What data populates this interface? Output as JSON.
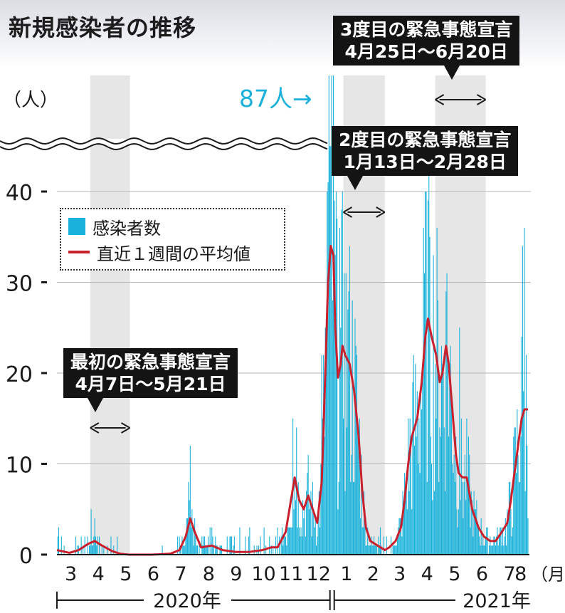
{
  "title": "新規感染者の推移",
  "annotations": {
    "first_state": {
      "line1": "最初の緊急事態宣言",
      "line2": "4月7日〜5月21日"
    },
    "second_state": {
      "line1": "2度目の緊急事態宣言",
      "line2": "1月13日〜2月28日"
    },
    "third_state": {
      "line1": "3度目の緊急事態宣言",
      "line2": "4月25日〜6月20日"
    },
    "peak_label": "87人→"
  },
  "legend": {
    "bar": "感染者数",
    "line": "直近１週間の平均値"
  },
  "colors": {
    "bar": "#1ab2db",
    "line": "#c8202c",
    "shade": "#e6e6e6",
    "peak_text": "#1ab2db"
  },
  "chart_data": {
    "type": "bar",
    "ylabel": "（人）",
    "y_ticks": [
      "0",
      "10",
      "20",
      "30",
      "40"
    ],
    "ylim": [
      0,
      45
    ],
    "axis_break": true,
    "x_tick_labels": [
      "3",
      "4",
      "5",
      "6",
      "7",
      "8",
      "9",
      "10",
      "11",
      "12",
      "1",
      "2",
      "3",
      "4",
      "5",
      "6",
      "7",
      "8"
    ],
    "x_unit": "（月）",
    "years": [
      "2020年",
      "2021年"
    ],
    "peak_value": 87,
    "emergency_periods": [
      {
        "start": "2020-04-07",
        "end": "2020-05-21"
      },
      {
        "start": "2021-01-13",
        "end": "2021-02-28"
      },
      {
        "start": "2021-04-25",
        "end": "2021-06-20"
      }
    ],
    "series": [
      {
        "name": "直近１週間の平均値",
        "type": "line",
        "points": [
          [
            "2020-03-01",
            0.5
          ],
          [
            "2020-03-15",
            0.2
          ],
          [
            "2020-03-25",
            0.5
          ],
          [
            "2020-04-05",
            1.2
          ],
          [
            "2020-04-12",
            1.5
          ],
          [
            "2020-04-20",
            1.0
          ],
          [
            "2020-05-01",
            0.4
          ],
          [
            "2020-05-10",
            0.1
          ],
          [
            "2020-05-20",
            0.0
          ],
          [
            "2020-06-15",
            0.0
          ],
          [
            "2020-07-05",
            0.1
          ],
          [
            "2020-07-15",
            0.5
          ],
          [
            "2020-07-22",
            2.0
          ],
          [
            "2020-07-27",
            4.0
          ],
          [
            "2020-08-01",
            2.5
          ],
          [
            "2020-08-08",
            0.8
          ],
          [
            "2020-08-20",
            1.0
          ],
          [
            "2020-09-01",
            0.5
          ],
          [
            "2020-09-15",
            0.3
          ],
          [
            "2020-10-01",
            0.3
          ],
          [
            "2020-10-15",
            0.5
          ],
          [
            "2020-10-25",
            0.8
          ],
          [
            "2020-11-01",
            0.8
          ],
          [
            "2020-11-10",
            2.5
          ],
          [
            "2020-11-15",
            5.5
          ],
          [
            "2020-11-20",
            8.5
          ],
          [
            "2020-11-25",
            6.0
          ],
          [
            "2020-11-30",
            5.0
          ],
          [
            "2020-12-05",
            6.5
          ],
          [
            "2020-12-10",
            5.0
          ],
          [
            "2020-12-15",
            3.5
          ],
          [
            "2020-12-20",
            8.0
          ],
          [
            "2020-12-24",
            20.0
          ],
          [
            "2020-12-27",
            30.0
          ],
          [
            "2020-12-30",
            34.0
          ],
          [
            "2021-01-02",
            33.0
          ],
          [
            "2021-01-04",
            25.0
          ],
          [
            "2021-01-07",
            19.5
          ],
          [
            "2021-01-10",
            21.0
          ],
          [
            "2021-01-12",
            23.0
          ],
          [
            "2021-01-15",
            22.0
          ],
          [
            "2021-01-20",
            21.0
          ],
          [
            "2021-01-25",
            18.0
          ],
          [
            "2021-01-30",
            13.0
          ],
          [
            "2021-02-03",
            7.0
          ],
          [
            "2021-02-07",
            3.0
          ],
          [
            "2021-02-12",
            1.5
          ],
          [
            "2021-02-20",
            1.0
          ],
          [
            "2021-02-28",
            0.5
          ],
          [
            "2021-03-05",
            0.8
          ],
          [
            "2021-03-12",
            1.5
          ],
          [
            "2021-03-18",
            3.0
          ],
          [
            "2021-03-22",
            6.0
          ],
          [
            "2021-03-26",
            10.0
          ],
          [
            "2021-03-30",
            13.0
          ],
          [
            "2021-04-05",
            15.0
          ],
          [
            "2021-04-10",
            19.0
          ],
          [
            "2021-04-14",
            24.0
          ],
          [
            "2021-04-17",
            26.0
          ],
          [
            "2021-04-21",
            24.0
          ],
          [
            "2021-04-26",
            22.0
          ],
          [
            "2021-04-30",
            19.0
          ],
          [
            "2021-05-03",
            20.0
          ],
          [
            "2021-05-07",
            23.0
          ],
          [
            "2021-05-10",
            21.0
          ],
          [
            "2021-05-14",
            16.0
          ],
          [
            "2021-05-18",
            11.0
          ],
          [
            "2021-05-21",
            9.0
          ],
          [
            "2021-05-25",
            8.5
          ],
          [
            "2021-05-30",
            8.5
          ],
          [
            "2021-06-05",
            5.0
          ],
          [
            "2021-06-12",
            3.0
          ],
          [
            "2021-06-18",
            2.0
          ],
          [
            "2021-06-25",
            1.5
          ],
          [
            "2021-07-01",
            1.5
          ],
          [
            "2021-07-08",
            2.5
          ],
          [
            "2021-07-14",
            3.5
          ],
          [
            "2021-07-18",
            6.0
          ],
          [
            "2021-07-22",
            9.0
          ],
          [
            "2021-07-26",
            12.0
          ],
          [
            "2021-07-30",
            15.0
          ],
          [
            "2021-08-02",
            16.0
          ]
        ]
      },
      {
        "name": "感染者数",
        "type": "bar",
        "highlights": [
          [
            "2020-04-08",
            5
          ],
          [
            "2020-04-12",
            4
          ],
          [
            "2020-07-27",
            12
          ],
          [
            "2020-07-25",
            8
          ],
          [
            "2020-11-18",
            15
          ],
          [
            "2020-11-22",
            14
          ],
          [
            "2020-12-20",
            22
          ],
          [
            "2020-12-26",
            40
          ],
          [
            "2020-12-29",
            45
          ],
          [
            "2020-12-31",
            87
          ],
          [
            "2021-01-05",
            40
          ],
          [
            "2021-01-09",
            36
          ],
          [
            "2021-01-14",
            31
          ],
          [
            "2021-01-19",
            29
          ],
          [
            "2021-04-15",
            40
          ],
          [
            "2021-04-19",
            35
          ],
          [
            "2021-05-07",
            29
          ],
          [
            "2021-05-22",
            25
          ],
          [
            "2021-07-31",
            34
          ],
          [
            "2021-08-02",
            36
          ]
        ]
      }
    ]
  }
}
